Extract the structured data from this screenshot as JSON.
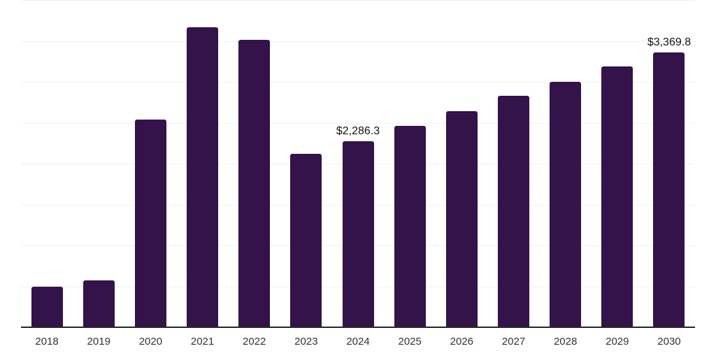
{
  "chart_data": {
    "type": "bar",
    "title": "",
    "xlabel": "",
    "ylabel": "",
    "categories": [
      "2018",
      "2019",
      "2020",
      "2021",
      "2022",
      "2023",
      "2024",
      "2025",
      "2026",
      "2027",
      "2028",
      "2029",
      "2030"
    ],
    "values": [
      505,
      580,
      2545,
      3675,
      3520,
      2125,
      2286.3,
      2470,
      2650,
      2835,
      3010,
      3200,
      3369.8
    ],
    "point_labels": [
      "",
      "",
      "",
      "",
      "",
      "",
      "$2,286.3",
      "",
      "",
      "",
      "",
      "",
      "$3,369.8"
    ],
    "ylim": [
      0,
      4000
    ],
    "grid_interval": 500,
    "grid": true,
    "legend": false,
    "colors": {
      "bar": "#331349",
      "axis_line": "#262626",
      "gridline": "#f2f2f2",
      "tick_label": "#333333",
      "value_label": "#111111",
      "background": "#ffffff"
    }
  }
}
